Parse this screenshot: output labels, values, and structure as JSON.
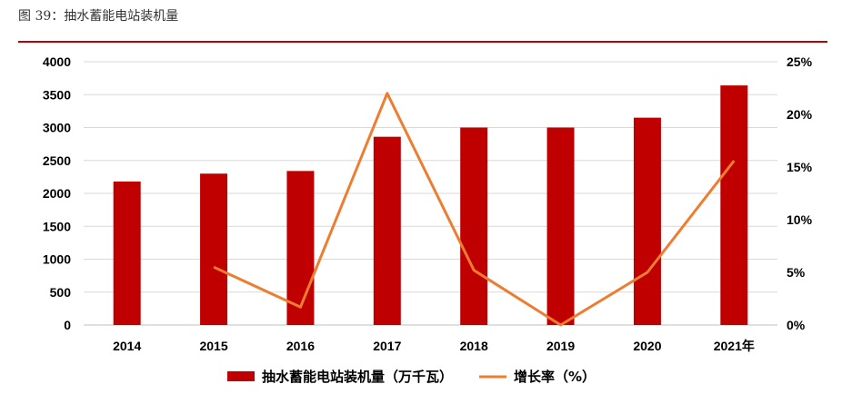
{
  "caption": "图 39：抽水蓄能电站装机量",
  "colors": {
    "bar": "#c00000",
    "line": "#ed7d31",
    "rule": "#c00000",
    "grid": "#d9d9d9"
  },
  "chart_data": {
    "type": "bar",
    "categories": [
      "2014",
      "2015",
      "2016",
      "2017",
      "2018",
      "2019",
      "2020",
      "2021年"
    ],
    "series": [
      {
        "name": "抽水蓄能电站装机量（万千瓦）",
        "type": "bar",
        "axis": "left",
        "values": [
          2180,
          2300,
          2340,
          2860,
          3000,
          3000,
          3150,
          3640
        ]
      },
      {
        "name": "增长率（%）",
        "type": "line",
        "axis": "right",
        "values": [
          null,
          5.5,
          1.7,
          22.0,
          5.2,
          0.0,
          5.0,
          15.6
        ]
      }
    ],
    "ylim": [
      0,
      4000
    ],
    "yticks": [
      "0",
      "500",
      "1000",
      "1500",
      "2000",
      "2500",
      "3000",
      "3500",
      "4000"
    ],
    "y2lim": [
      0,
      25
    ],
    "y2ticks": [
      "0%",
      "5%",
      "10%",
      "15%",
      "20%",
      "25%"
    ],
    "grid": true,
    "legend": "bottom-center"
  }
}
